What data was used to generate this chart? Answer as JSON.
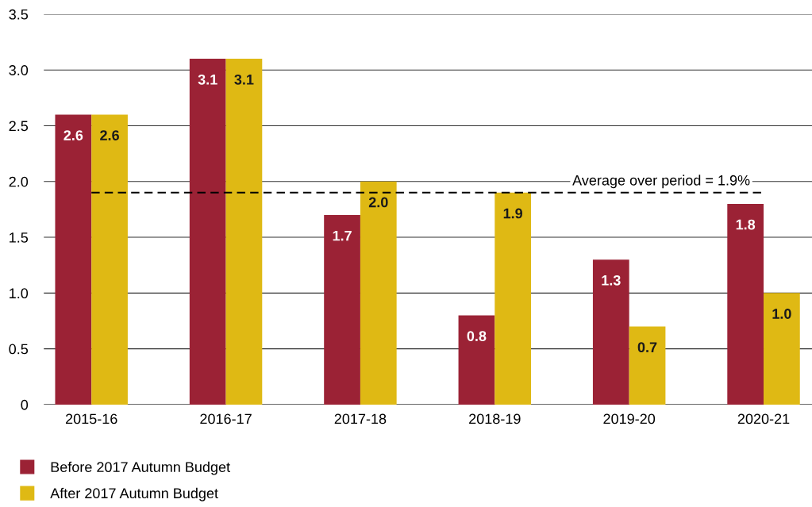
{
  "chart_data": {
    "type": "bar",
    "categories": [
      "2015-16",
      "2016-17",
      "2017-18",
      "2018-19",
      "2019-20",
      "2020-21"
    ],
    "series": [
      {
        "name": "Before 2017 Autumn Budget",
        "color": "#9b2235",
        "values": [
          2.6,
          3.1,
          1.7,
          0.8,
          1.3,
          1.8
        ],
        "value_labels": [
          "2.6",
          "3.1",
          "1.7",
          "0.8",
          "1.3",
          "1.8"
        ]
      },
      {
        "name": "After 2017 Autumn Budget",
        "color": "#dfb914",
        "values": [
          2.6,
          3.1,
          2.0,
          1.9,
          0.7,
          1.0
        ],
        "value_labels": [
          "2.6",
          "3.1",
          "2.0",
          "1.9",
          "0.7",
          "1.0"
        ]
      }
    ],
    "ylim": [
      0,
      3.5
    ],
    "yticks": [
      {
        "value": 0,
        "label": "0"
      },
      {
        "value": 0.5,
        "label": "0.5"
      },
      {
        "value": 1,
        "label": "1.0"
      },
      {
        "value": 1.5,
        "label": "1.5"
      },
      {
        "value": 2,
        "label": "2.0"
      },
      {
        "value": 2.5,
        "label": "2.5"
      },
      {
        "value": 3,
        "label": "3.0"
      },
      {
        "value": 3.5,
        "label": "3.5"
      }
    ],
    "grid": "y",
    "legend": "bottom",
    "ref_lines": [
      {
        "axis": "y",
        "value": 1.9,
        "label": "Average over period = 1.9%",
        "color": "#000000",
        "line_style": "dashed"
      }
    ]
  }
}
